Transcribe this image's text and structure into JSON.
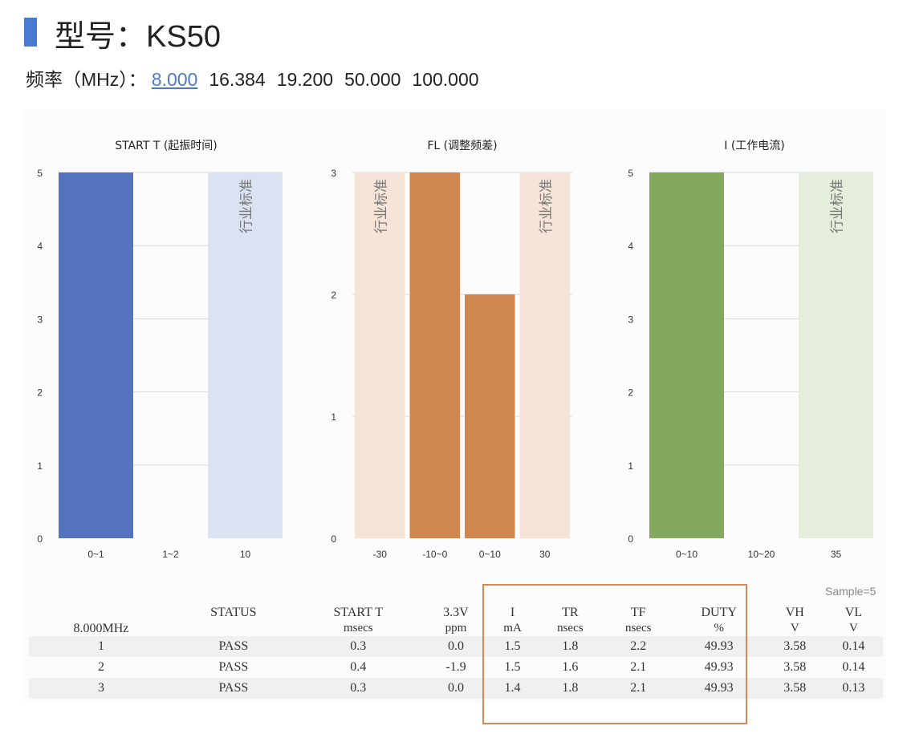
{
  "header": {
    "title": "型号：KS50",
    "freq_label": "频率（MHz）：",
    "frequencies": [
      "8.000",
      "16.384",
      "19.200",
      "50.000",
      "100.000"
    ],
    "selected_frequency": "8.000",
    "accent_color": "#4a7bd0"
  },
  "chart_data": [
    {
      "type": "bar",
      "title": "START T (起振时间)",
      "categories": [
        "0~1",
        "1~2",
        "10"
      ],
      "values": [
        5,
        0,
        5
      ],
      "ylim": [
        0,
        5
      ],
      "yticks": [
        0,
        1,
        2,
        3,
        4,
        5
      ],
      "grid": true,
      "standard_category": "10",
      "standard_label": "行业标准",
      "bar_color": "#5472be",
      "standard_color": "#dbe2f2"
    },
    {
      "type": "bar",
      "title": "FL (调整频差)",
      "categories": [
        "-30",
        "-10~0",
        "0~10",
        "30"
      ],
      "values": [
        3,
        3,
        2,
        3
      ],
      "ylim": [
        0,
        3
      ],
      "yticks": [
        0,
        1,
        2,
        3
      ],
      "grid": true,
      "standard_categories": [
        "-30",
        "30"
      ],
      "standard_label": "行业标准",
      "bar_color": "#d0864f",
      "standard_color": "#f5e4d7"
    },
    {
      "type": "bar",
      "title": "I (工作电流)",
      "categories": [
        "0~10",
        "10~20",
        "35"
      ],
      "values": [
        5,
        0,
        5
      ],
      "ylim": [
        0,
        5
      ],
      "yticks": [
        0,
        1,
        2,
        3,
        4,
        5
      ],
      "grid": true,
      "standard_category": "35",
      "standard_label": "行业标准",
      "bar_color": "#84a95e",
      "standard_color": "#e5eedb"
    }
  ],
  "sample_note": "Sample=5",
  "table": {
    "frequency": "8.000MHz",
    "columns": [
      {
        "name": "STATUS",
        "unit": ""
      },
      {
        "name": "START T",
        "unit": "msecs"
      },
      {
        "name": "3.3V",
        "unit": "ppm"
      },
      {
        "name": "I",
        "unit": "mA"
      },
      {
        "name": "TR",
        "unit": "nsecs"
      },
      {
        "name": "TF",
        "unit": "nsecs"
      },
      {
        "name": "DUTY",
        "unit": "%"
      },
      {
        "name": "VH",
        "unit": "V"
      },
      {
        "name": "VL",
        "unit": "V"
      }
    ],
    "rows": [
      [
        "1",
        "PASS",
        "0.3",
        "0.0",
        "1.5",
        "1.8",
        "2.2",
        "49.93",
        "3.58",
        "0.14"
      ],
      [
        "2",
        "PASS",
        "0.4",
        "-1.9",
        "1.5",
        "1.6",
        "2.1",
        "49.93",
        "3.58",
        "0.14"
      ],
      [
        "3",
        "PASS",
        "0.3",
        "0.0",
        "1.4",
        "1.8",
        "2.1",
        "49.93",
        "3.58",
        "0.13"
      ]
    ],
    "highlight_color": "#d9884f"
  }
}
